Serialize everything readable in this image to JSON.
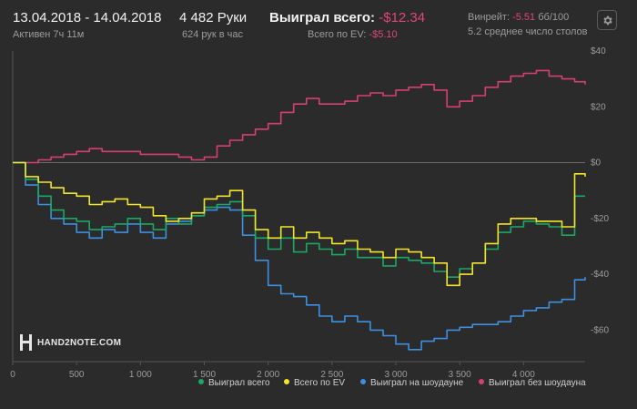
{
  "header": {
    "date_range": "13.04.2018 - 14.04.2018",
    "active_time": "Активен 7ч 11м",
    "hands": "4 482 Руки",
    "hands_per_hour": "624 рук в час",
    "won_total_label": "Выиграл всего:",
    "won_total_value": "-$12.34",
    "ev_total_label": "Всего по EV:",
    "ev_total_value": "-$5.10",
    "winrate_label": "Винрейт:",
    "winrate_value": "-5.51",
    "winrate_unit": "бб/100",
    "avg_tables": "5.2 среднее число столов",
    "settings_icon": "gear-icon"
  },
  "logo": {
    "text": "HAND2NOTE.COM",
    "icon": "hand2note-logo-icon"
  },
  "colors": {
    "background": "#2b2b2b",
    "won_total": "#1aa864",
    "ev_total": "#f2e52e",
    "showdown": "#3d8fe0",
    "non_showdown": "#d63f74",
    "negative": "#e0457b",
    "grid": "#3a3a3a"
  },
  "chart_data": {
    "type": "line",
    "xlabel": "",
    "ylabel": "",
    "xlim": [
      0,
      4482
    ],
    "ylim": [
      -70,
      40
    ],
    "x_ticks": [
      0,
      500,
      1000,
      1500,
      2000,
      2500,
      3000,
      3500,
      4000
    ],
    "x_tick_labels": [
      "0",
      "500",
      "1 000",
      "1 500",
      "2 000",
      "2 500",
      "3 000",
      "3 500",
      "4 000"
    ],
    "y_ticks": [
      40,
      20,
      0,
      -20,
      -40,
      -60
    ],
    "y_tick_labels": [
      "$40",
      "$20",
      "$0",
      "-$20",
      "-$40",
      "-$60"
    ],
    "grid": false,
    "legend_position": "bottom-right",
    "legend": [
      "Выиграл всего",
      "Всего по EV",
      "Выиграл на шоудауне",
      "Выиграл без шоудауна"
    ],
    "x": [
      0,
      100,
      200,
      300,
      400,
      500,
      600,
      700,
      800,
      900,
      1000,
      1100,
      1200,
      1300,
      1400,
      1500,
      1600,
      1700,
      1800,
      1900,
      2000,
      2100,
      2200,
      2300,
      2400,
      2500,
      2600,
      2700,
      2800,
      2900,
      3000,
      3100,
      3200,
      3300,
      3400,
      3500,
      3600,
      3700,
      3800,
      3900,
      4000,
      4100,
      4200,
      4300,
      4400,
      4482
    ],
    "series": [
      {
        "name": "Выиграл всего",
        "values": [
          0,
          -6,
          -12,
          -17,
          -20,
          -21,
          -24,
          -23,
          -22,
          -20,
          -22,
          -24,
          -20,
          -22,
          -19,
          -16,
          -15,
          -14,
          -19,
          -27,
          -31,
          -27,
          -32,
          -29,
          -31,
          -33,
          -31,
          -34,
          -34,
          -37,
          -34,
          -35,
          -36,
          -39,
          -41,
          -38,
          -36,
          -31,
          -25,
          -23,
          -21,
          -22,
          -23,
          -26,
          -12,
          -12
        ]
      },
      {
        "name": "Всего по EV",
        "values": [
          0,
          -5,
          -7,
          -9,
          -11,
          -12,
          -15,
          -14,
          -13,
          -15,
          -16,
          -19,
          -21,
          -20,
          -18,
          -13,
          -12,
          -10,
          -17,
          -24,
          -27,
          -23,
          -27,
          -25,
          -27,
          -29,
          -28,
          -31,
          -32,
          -34,
          -31,
          -32,
          -34,
          -36,
          -44,
          -40,
          -36,
          -29,
          -22,
          -20,
          -20,
          -21,
          -21,
          -23,
          -4,
          -5
        ]
      },
      {
        "name": "Выиграл на шоудауне",
        "values": [
          0,
          -8,
          -15,
          -20,
          -22,
          -25,
          -27,
          -24,
          -25,
          -22,
          -25,
          -27,
          -22,
          -21,
          -19,
          -17,
          -16,
          -17,
          -26,
          -35,
          -44,
          -47,
          -48,
          -51,
          -55,
          -57,
          -55,
          -57,
          -60,
          -62,
          -65,
          -67,
          -64,
          -63,
          -60,
          -59,
          -58,
          -58,
          -57,
          -55,
          -53,
          -52,
          -50,
          -49,
          -42,
          -41
        ]
      },
      {
        "name": "Выиграл без шоудауна",
        "values": [
          0,
          0,
          1,
          2,
          3,
          4,
          5,
          4,
          4,
          4,
          3,
          3,
          3,
          2,
          1,
          2,
          6,
          8,
          10,
          12,
          14,
          18,
          21,
          23,
          21,
          21,
          22,
          24,
          25,
          24,
          26,
          27,
          28,
          26,
          20,
          22,
          24,
          27,
          29,
          31,
          32,
          33,
          31,
          30,
          29,
          28
        ]
      }
    ]
  },
  "ui": {
    "legend": [
      {
        "label": "Выиграл всего",
        "color": "#1aa864"
      },
      {
        "label": "Всего по EV",
        "color": "#f2e52e"
      },
      {
        "label": "Выиграл на шоудауне",
        "color": "#3d8fe0"
      },
      {
        "label": "Выиграл без шоудауна",
        "color": "#d63f74"
      }
    ]
  }
}
